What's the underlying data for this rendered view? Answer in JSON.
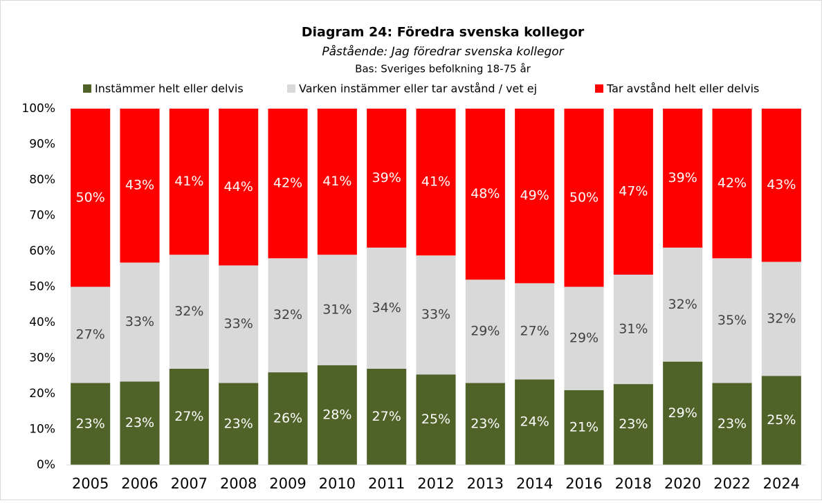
{
  "chart_data": {
    "type": "stacked_bar",
    "title": "Diagram 24: Föredra svenska kollegor",
    "subtitle": "Påstående: Jag föredrar svenska kollegor",
    "note": "Bas: Sveriges befolkning 18-75 år",
    "categories": [
      "2005",
      "2006",
      "2007",
      "2008",
      "2009",
      "2010",
      "2011",
      "2012",
      "2013",
      "2014",
      "2016",
      "2018",
      "2020",
      "2022",
      "2024"
    ],
    "series": [
      {
        "name": "Instämmer helt eller delvis",
        "color": "#4f6228",
        "label_color": "#ffffff",
        "values": [
          23,
          23.4,
          27,
          23,
          26,
          28,
          27,
          25.4,
          23,
          24,
          21,
          22.7,
          29,
          23,
          25
        ],
        "value_labels": [
          "23%",
          "23%",
          "27%",
          "23%",
          "26%",
          "28%",
          "27%",
          "25%",
          "23%",
          "24%",
          "21%",
          "23%",
          "29%",
          "23%",
          "25%"
        ]
      },
      {
        "name": "Varken instämmer eller tar avstånd / vet ej",
        "color": "#d9d9d9",
        "label_color": "#404040",
        "values": [
          27,
          33.4,
          32,
          33,
          32,
          31,
          34,
          33.4,
          29,
          27,
          29,
          30.7,
          32,
          35,
          32
        ],
        "value_labels": [
          "27%",
          "33%",
          "32%",
          "33%",
          "32%",
          "31%",
          "34%",
          "33%",
          "29%",
          "27%",
          "29%",
          "31%",
          "32%",
          "35%",
          "32%"
        ]
      },
      {
        "name": "Tar avstånd helt eller delvis",
        "color": "#ff0000",
        "label_color": "#ffffff",
        "values": [
          50,
          43.2,
          41,
          44,
          42,
          41,
          39,
          41.2,
          48,
          49,
          50,
          46.6,
          39,
          42,
          43
        ],
        "value_labels": [
          "50%",
          "43%",
          "41%",
          "44%",
          "42%",
          "41%",
          "39%",
          "41%",
          "48%",
          "49%",
          "50%",
          "47%",
          "39%",
          "42%",
          "43%"
        ]
      }
    ],
    "ylim": [
      0,
      100
    ],
    "yticks": [
      {
        "value": 0,
        "label": "0%"
      },
      {
        "value": 10,
        "label": "10%"
      },
      {
        "value": 20,
        "label": "20%"
      },
      {
        "value": 30,
        "label": "30%"
      },
      {
        "value": 40,
        "label": "40%"
      },
      {
        "value": 50,
        "label": "50%"
      },
      {
        "value": 60,
        "label": "60%"
      },
      {
        "value": 70,
        "label": "70%"
      },
      {
        "value": 80,
        "label": "80%"
      },
      {
        "value": 90,
        "label": "90%"
      },
      {
        "value": 100,
        "label": "100%"
      }
    ],
    "legend": "top"
  }
}
